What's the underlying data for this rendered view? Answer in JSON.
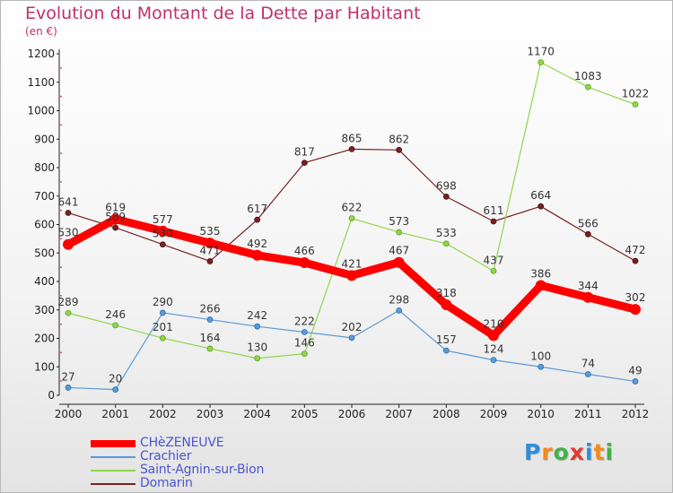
{
  "title": "Evolution du Montant de la Dette par Habitant",
  "subtitle": "(en €)",
  "logo": {
    "letters": [
      "P",
      "r",
      "o",
      "x",
      "i",
      "t",
      "i"
    ],
    "colors": [
      "#2e8fd8",
      "#f28b1a",
      "#43b049",
      "#e23b2e",
      "#2e8fd8",
      "#f28b1a",
      "#43b049"
    ]
  },
  "chart_data": {
    "type": "line",
    "x": [
      "2000",
      "2001",
      "2002",
      "2003",
      "2004",
      "2005",
      "2006",
      "2007",
      "2008",
      "2009",
      "2010",
      "2011",
      "2012"
    ],
    "ylim": [
      0,
      1200
    ],
    "yticks": [
      "0",
      "100",
      "200",
      "300",
      "400",
      "500",
      "600",
      "700",
      "800",
      "900",
      "1000",
      "1100",
      "1200"
    ],
    "grid": false,
    "legend_position": "bottom-left",
    "series": [
      {
        "name": "CHèZENEUVE",
        "color": "#ff0000",
        "values": [
          530,
          619,
          577,
          535,
          492,
          466,
          421,
          467,
          318,
          210,
          386,
          344,
          302
        ],
        "labels": [
          "530",
          "619",
          "577",
          "535",
          "492",
          "466",
          "421",
          "467",
          "318",
          "210",
          "386",
          "344",
          "302"
        ]
      },
      {
        "name": "Crachier",
        "color": "#5a9ad6",
        "values": [
          27,
          20,
          290,
          266,
          242,
          222,
          202,
          298,
          157,
          124,
          100,
          74,
          49
        ],
        "labels": [
          "27",
          "20",
          "290",
          "266",
          "242",
          "222",
          "202",
          "298",
          "157",
          "124",
          "100",
          "74",
          "49"
        ]
      },
      {
        "name": "Saint-Agnin-sur-Bion",
        "color": "#90d64a",
        "values": [
          289,
          246,
          201,
          164,
          130,
          146,
          622,
          573,
          533,
          437,
          1170,
          1083,
          1022
        ],
        "labels": [
          "289",
          "246",
          "201",
          "164",
          "130",
          "146",
          "622",
          "573",
          "533",
          "437",
          "1170",
          "1083",
          "1022"
        ]
      },
      {
        "name": "Domarin",
        "color": "#7a2020",
        "values": [
          641,
          589,
          530,
          471,
          617,
          817,
          865,
          862,
          698,
          611,
          664,
          566,
          472
        ],
        "labels": [
          "641",
          "589",
          "530",
          "471",
          "617",
          "817",
          "865",
          "862",
          "698",
          "611",
          "664",
          "566",
          "472"
        ]
      }
    ]
  }
}
